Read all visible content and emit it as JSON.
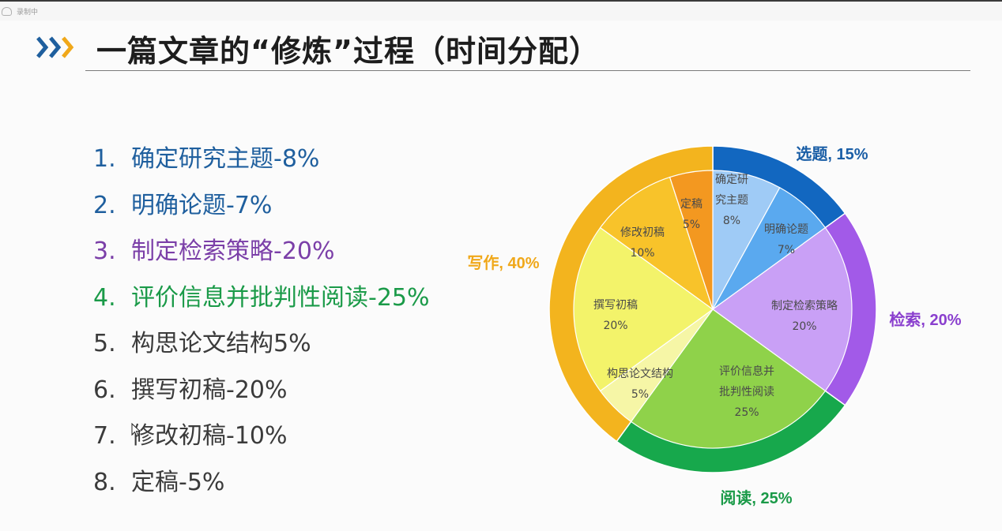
{
  "window": {
    "recorder_label": "录制中"
  },
  "slide": {
    "title": "一篇文章的“修炼”过程（时间分配）",
    "items": [
      {
        "num": "1.",
        "text": "确定研究主题-8%",
        "color": "#1f5f9e"
      },
      {
        "num": "2.",
        "text": "明确论题-7%",
        "color": "#1f5f9e"
      },
      {
        "num": "3.",
        "text": "制定检索策略-20%",
        "color": "#7b3fa8"
      },
      {
        "num": "4.",
        "text": "评价信息并批判性阅读-25%",
        "color": "#1a9a48"
      },
      {
        "num": "5.",
        "text": "构思论文结构5%",
        "color": "#3b3b3b"
      },
      {
        "num": "6.",
        "text": "撰写初稿-20%",
        "color": "#3b3b3b"
      },
      {
        "num": "7.",
        "text": "修改初稿-10%",
        "color": "#3b3b3b"
      },
      {
        "num": "8.",
        "text": "定稿-5%",
        "color": "#3b3b3b"
      }
    ]
  },
  "chart_data": {
    "type": "pie",
    "title": "",
    "outer": [
      {
        "label": "选题, 15%",
        "value": 15,
        "color": "#1267c0",
        "text_color": "#1a5ea6"
      },
      {
        "label": "检索, 20%",
        "value": 20,
        "color": "#a25ae8",
        "text_color": "#8a3fce"
      },
      {
        "label": "阅读, 25%",
        "value": 25,
        "color": "#17a84c",
        "text_color": "#1a9a48"
      },
      {
        "label": "写作, 40%",
        "value": 40,
        "color": "#f3b41e",
        "text_color": "#f0a81a"
      }
    ],
    "inner": [
      {
        "name": "确定研究主题",
        "label_lines": [
          "确定研",
          "究主题"
        ],
        "pct": "8%",
        "value": 8,
        "color": "#9fcbf6"
      },
      {
        "name": "明确论题",
        "label_lines": [
          "明确论题"
        ],
        "pct": "7%",
        "value": 7,
        "color": "#5aa9ef"
      },
      {
        "name": "制定检索策略",
        "label_lines": [
          "制定检索策略"
        ],
        "pct": "20%",
        "value": 20,
        "color": "#c9a0f6"
      },
      {
        "name": "评价信息并批判性阅读",
        "label_lines": [
          "评价信息并",
          "批判性阅读"
        ],
        "pct": "25%",
        "value": 25,
        "color": "#8fd24a"
      },
      {
        "name": "构思论文结构",
        "label_lines": [
          "构思论文结构"
        ],
        "pct": "5%",
        "value": 5,
        "color": "#f6f6a6"
      },
      {
        "name": "撰写初稿",
        "label_lines": [
          "撰写初稿"
        ],
        "pct": "20%",
        "value": 20,
        "color": "#f3f36a"
      },
      {
        "name": "修改初稿",
        "label_lines": [
          "修改初稿"
        ],
        "pct": "10%",
        "value": 10,
        "color": "#f8c32a"
      },
      {
        "name": "定稿",
        "label_lines": [
          "定稿"
        ],
        "pct": "5%",
        "value": 5,
        "color": "#f39820"
      }
    ]
  }
}
